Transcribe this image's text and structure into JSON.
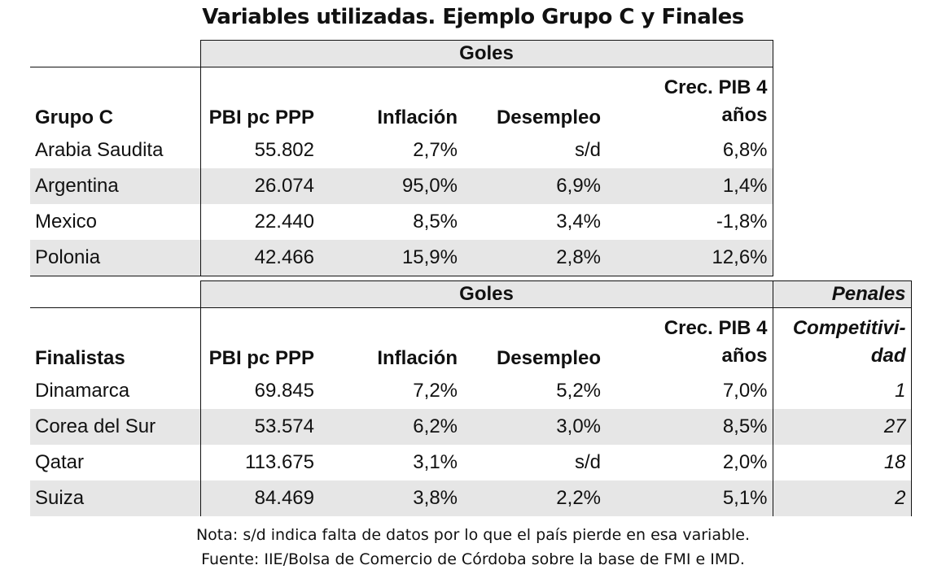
{
  "title": "Variables utilizadas. Ejemplo Grupo C y Finales",
  "table1": {
    "band_label": "Goles",
    "headers": {
      "c0": "Grupo C",
      "c1": "PBI pc PPP",
      "c2": "Inflación",
      "c3": "Desempleo",
      "c4_line1": "Crec. PIB 4",
      "c4_line2": "años"
    },
    "rows": [
      [
        "Arabia Saudita",
        "55.802",
        "2,7%",
        "s/d",
        "6,8%"
      ],
      [
        "Argentina",
        "26.074",
        "95,0%",
        "6,9%",
        "1,4%"
      ],
      [
        "Mexico",
        "22.440",
        "8,5%",
        "3,4%",
        "-1,8%"
      ],
      [
        "Polonia",
        "42.466",
        "15,9%",
        "2,8%",
        "12,6%"
      ]
    ]
  },
  "table2": {
    "band_label": "Goles",
    "band2_label": "Penales",
    "headers": {
      "c0": "Finalistas",
      "c1": "PBI pc PPP",
      "c2": "Inflación",
      "c3": "Desempleo",
      "c4_line1": "Crec. PIB 4",
      "c4_line2": "años",
      "c5_line1": "Competitivi-",
      "c5_line2": "dad"
    },
    "rows": [
      [
        "Dinamarca",
        "69.845",
        "7,2%",
        "5,2%",
        "7,0%",
        "1"
      ],
      [
        "Corea del Sur",
        "53.574",
        "6,2%",
        "3,0%",
        "8,5%",
        "27"
      ],
      [
        "Qatar",
        "113.675",
        "3,1%",
        "s/d",
        "2,0%",
        "18"
      ],
      [
        "Suiza",
        "84.469",
        "3,8%",
        "2,2%",
        "5,1%",
        "2"
      ]
    ]
  },
  "notes": {
    "line1": "Nota: s/d indica falta de datos por lo que el país pierde en esa variable.",
    "line2": "Fuente: IIE/Bolsa de Comercio de Córdoba sobre la base de FMI e IMD."
  }
}
